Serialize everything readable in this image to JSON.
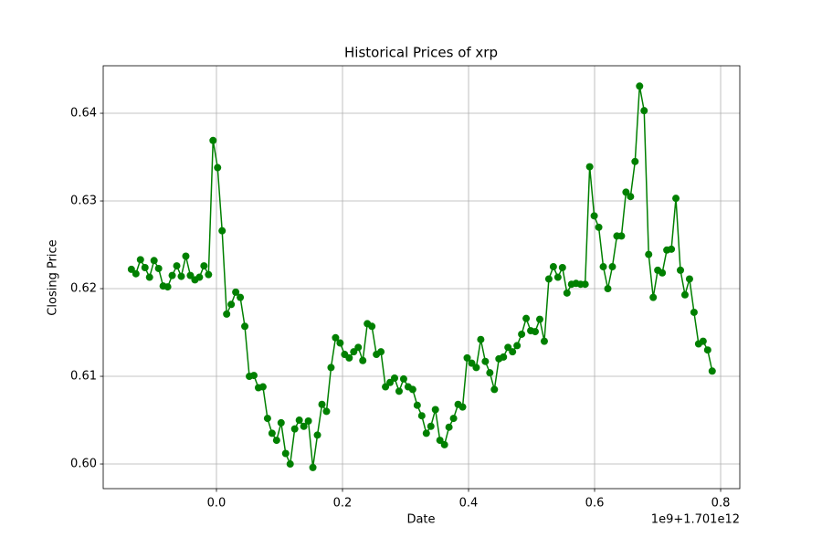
{
  "chart_data": {
    "type": "line",
    "title": "Historical Prices of xrp",
    "xlabel": "Date",
    "ylabel": "Closing Price",
    "x_offset_label": "1e9+1.701e12",
    "color": "green",
    "marker": "o",
    "grid": true,
    "xlim": [
      -0.1797,
      0.8304
    ],
    "ylim": [
      0.59719,
      0.64542
    ],
    "xticks": [
      {
        "value": 0,
        "label": "0.0"
      },
      0.2,
      0.4,
      0.6,
      0.8
    ],
    "yticks": [
      {
        "value": 0.6,
        "label": "0.60"
      },
      0.61,
      0.62,
      0.63,
      0.64
    ],
    "x": [
      -0.135,
      -0.1278,
      -0.1206,
      -0.1134,
      -0.1062,
      -0.099,
      -0.0918,
      -0.0846,
      -0.0774,
      -0.0702,
      -0.063,
      -0.0558,
      -0.0486,
      -0.0414,
      -0.0342,
      -0.027,
      -0.0198,
      -0.0126,
      -0.0054,
      0.0018,
      0.009,
      0.0162,
      0.0234,
      0.0306,
      0.0378,
      0.045,
      0.0522,
      0.0594,
      0.0666,
      0.0738,
      0.081,
      0.0882,
      0.0954,
      0.1026,
      0.1098,
      0.117,
      0.1242,
      0.1314,
      0.1386,
      0.1458,
      0.153,
      0.1602,
      0.1674,
      0.1746,
      0.1818,
      0.189,
      0.1962,
      0.2034,
      0.2106,
      0.2178,
      0.225,
      0.2322,
      0.2394,
      0.2466,
      0.2538,
      0.261,
      0.2682,
      0.2754,
      0.2826,
      0.2898,
      0.297,
      0.3042,
      0.3114,
      0.3186,
      0.3258,
      0.333,
      0.3402,
      0.3474,
      0.3546,
      0.3618,
      0.369,
      0.3762,
      0.3834,
      0.3906,
      0.3978,
      0.405,
      0.4122,
      0.4194,
      0.4266,
      0.4338,
      0.441,
      0.4482,
      0.4554,
      0.4626,
      0.4698,
      0.477,
      0.4842,
      0.4914,
      0.4986,
      0.5058,
      0.513,
      0.5202,
      0.5274,
      0.5346,
      0.5418,
      0.549,
      0.5562,
      0.5634,
      0.5706,
      0.5778,
      0.585,
      0.5922,
      0.5994,
      0.6066,
      0.6138,
      0.621,
      0.6282,
      0.6354,
      0.6426,
      0.6498,
      0.657,
      0.6642,
      0.6714,
      0.6786,
      0.6858,
      0.693,
      0.7002,
      0.7074,
      0.7146,
      0.7218,
      0.729,
      0.7362,
      0.7434,
      0.7506,
      0.7578,
      0.765,
      0.7722,
      0.7794,
      0.7866
    ],
    "values": [
      0.6222,
      0.6217,
      0.6233,
      0.6224,
      0.6213,
      0.6232,
      0.6223,
      0.6203,
      0.6202,
      0.6215,
      0.6226,
      0.6214,
      0.6237,
      0.6215,
      0.621,
      0.6213,
      0.6226,
      0.6216,
      0.6369,
      0.6338,
      0.6266,
      0.6171,
      0.6182,
      0.6196,
      0.619,
      0.6157,
      0.61,
      0.6101,
      0.6087,
      0.6088,
      0.6052,
      0.6035,
      0.6027,
      0.6047,
      0.6012,
      0.6,
      0.604,
      0.605,
      0.6043,
      0.6049,
      0.5996,
      0.6033,
      0.6068,
      0.606,
      0.611,
      0.6144,
      0.6138,
      0.6125,
      0.6121,
      0.6128,
      0.6133,
      0.6118,
      0.616,
      0.6157,
      0.6125,
      0.6128,
      0.6088,
      0.6093,
      0.6098,
      0.6083,
      0.6097,
      0.6088,
      0.6085,
      0.6067,
      0.6055,
      0.6035,
      0.6043,
      0.6062,
      0.6027,
      0.6022,
      0.6042,
      0.6052,
      0.6068,
      0.6065,
      0.6121,
      0.6115,
      0.611,
      0.6142,
      0.6117,
      0.6104,
      0.6085,
      0.612,
      0.6122,
      0.6133,
      0.6128,
      0.6135,
      0.6148,
      0.6166,
      0.6152,
      0.6151,
      0.6165,
      0.614,
      0.6211,
      0.6225,
      0.6213,
      0.6224,
      0.6195,
      0.6205,
      0.6206,
      0.6205,
      0.6205,
      0.6339,
      0.6283,
      0.627,
      0.6225,
      0.62,
      0.6225,
      0.626,
      0.626,
      0.631,
      0.6305,
      0.6345,
      0.6431,
      0.6403,
      0.6239,
      0.619,
      0.6221,
      0.6218,
      0.6244,
      0.6245,
      0.6303,
      0.6221,
      0.6193,
      0.6211,
      0.6173,
      0.6137,
      0.614,
      0.613,
      0.6106
    ]
  }
}
